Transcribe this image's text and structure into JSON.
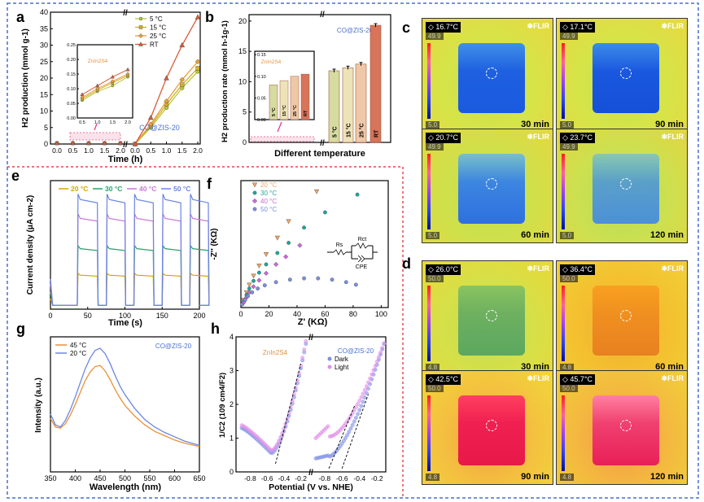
{
  "panel_labels": {
    "a": "a",
    "b": "b",
    "c": "c",
    "d": "d",
    "e": "e",
    "f": "f",
    "g": "g",
    "h": "h"
  },
  "chart_data": [
    {
      "id": "a",
      "type": "line",
      "xlabel": "Time (h)",
      "ylabel": "H2 production (mmol g-1)",
      "ylim": [
        0,
        40
      ],
      "x_ticks_left": [
        "0.0",
        "0.5",
        "1.0",
        "1.5",
        "2.0"
      ],
      "x_ticks_right": [
        "0.0",
        "0.5",
        "1.0",
        "1.5",
        "2.0"
      ],
      "y_ticks": [
        "0",
        "5",
        "10",
        "15",
        "20",
        "25",
        "30",
        "35",
        "40"
      ],
      "legend": [
        "5 °C",
        "15 °C",
        "25 °C",
        "RT"
      ],
      "series_colors": [
        "#b6c83a",
        "#d5b024",
        "#e89e3a",
        "#d65a3a"
      ],
      "main_label": "CO@ZIS-20",
      "main_x": [
        0,
        0.5,
        1.0,
        1.5,
        2.0
      ],
      "main_series": [
        {
          "name": "5 °C",
          "values": [
            0,
            5,
            11,
            17,
            22
          ]
        },
        {
          "name": "15 °C",
          "values": [
            0,
            5.5,
            12,
            18,
            23
          ]
        },
        {
          "name": "25 °C",
          "values": [
            0,
            6,
            13,
            19.5,
            25
          ]
        },
        {
          "name": "RT",
          "values": [
            0,
            8,
            20,
            30,
            38.5
          ]
        }
      ],
      "inset_label": "ZnIn2S4",
      "inset_x": [
        0.5,
        1.0,
        1.5,
        2.0
      ],
      "inset_x_ticks": [
        "0.5",
        "1.0",
        "1.5",
        "2.0"
      ],
      "inset_y_ticks": [
        "0.00",
        "0.05",
        "0.10",
        "0.15",
        "0.20",
        "0.25"
      ],
      "inset_series": [
        {
          "name": "5 °C",
          "values": [
            0.06,
            0.09,
            0.11,
            0.14
          ]
        },
        {
          "name": "15 °C",
          "values": [
            0.065,
            0.095,
            0.12,
            0.145
          ]
        },
        {
          "name": "25 °C",
          "values": [
            0.07,
            0.1,
            0.125,
            0.15
          ]
        },
        {
          "name": "RT",
          "values": [
            0.08,
            0.11,
            0.14,
            0.165
          ]
        }
      ]
    },
    {
      "id": "b",
      "type": "bar",
      "xlabel": "Different temperature",
      "ylabel": "H2 production rate (mmol h-1g-1)",
      "ylim": [
        0,
        20
      ],
      "y_ticks": [
        "0",
        "5",
        "10",
        "15",
        "20"
      ],
      "categories": [
        "5 °C",
        "15 °C",
        "25 °C",
        "RT"
      ],
      "main_label": "CO@ZIS-20",
      "main_values": [
        11.8,
        12.3,
        12.9,
        19.3
      ],
      "inset_label": "ZnIn2S4",
      "inset_values": [
        0.08,
        0.09,
        0.1,
        0.105
      ],
      "inset_y_ticks": [
        "0.00",
        "0.05",
        "0.10",
        "0.15"
      ],
      "bar_colors": [
        "#d6dba0",
        "#ede3b8",
        "#efc8a8",
        "#d7745a"
      ]
    },
    {
      "id": "e",
      "type": "line",
      "xlabel": "Time (s)",
      "ylabel": "Current density (μA cm-2)",
      "ylim": [
        0,
        1.7
      ],
      "x_ticks": [
        "0",
        "50",
        "100",
        "150",
        "200"
      ],
      "legend": [
        "20 °C",
        "30 °C",
        "40 °C",
        "50 °C"
      ],
      "series_colors": [
        "#d9a300",
        "#2e9d6a",
        "#c977d8",
        "#6a86e0"
      ],
      "on_levels": [
        0.45,
        0.8,
        1.2,
        1.45
      ]
    },
    {
      "id": "f",
      "type": "scatter",
      "xlabel": "Z' (KΩ)",
      "ylabel": "-Z'' (KΩ)",
      "xlim": [
        0,
        105
      ],
      "ylim": [
        0,
        200
      ],
      "x_ticks": [
        "0",
        "20",
        "40",
        "60",
        "80",
        "100"
      ],
      "legend": [
        "20 °C",
        "30 °C",
        "40 °C",
        "50 °C"
      ],
      "series_colors": [
        "#f0a463",
        "#1aa89a",
        "#c86ad7",
        "#7a8fe2"
      ],
      "series": [
        {
          "name": "20 °C",
          "x": [
            2,
            4,
            6,
            9,
            13,
            18,
            26,
            34,
            54
          ],
          "y": [
            12,
            24,
            36,
            50,
            66,
            84,
            110,
            136,
            183
          ]
        },
        {
          "name": "30 °C",
          "x": [
            2,
            4,
            6,
            9,
            13,
            18,
            26,
            34,
            45,
            60,
            83
          ],
          "y": [
            10,
            20,
            30,
            42,
            55,
            68,
            86,
            102,
            126,
            150,
            178
          ]
        },
        {
          "name": "40 °C",
          "x": [
            2,
            4,
            6,
            9,
            13,
            18,
            25,
            32,
            42
          ],
          "y": [
            8,
            16,
            24,
            33,
            43,
            54,
            68,
            80,
            98
          ]
        },
        {
          "name": "50 °C",
          "x": [
            1,
            3,
            5,
            8,
            12,
            17,
            25,
            35,
            45,
            55,
            65,
            75,
            82
          ],
          "y": [
            5,
            12,
            18,
            24,
            30,
            35,
            40,
            44,
            46,
            46,
            44,
            40,
            36
          ]
        }
      ],
      "circuit_labels": {
        "rs": "Rs",
        "rct": "Rct",
        "cpe": "CPE"
      }
    },
    {
      "id": "g",
      "type": "line",
      "xlabel": "Wavelength (nm)",
      "ylabel": "Intensity (a.u.)",
      "x_ticks": [
        "350",
        "400",
        "450",
        "500",
        "550",
        "600",
        "650"
      ],
      "legend": [
        "45 °C",
        "20 °C"
      ],
      "series_colors": [
        "#e8913a",
        "#6c86e0"
      ],
      "label": "CO@ZIS-20",
      "x": [
        350,
        360,
        370,
        380,
        390,
        400,
        410,
        420,
        430,
        440,
        450,
        460,
        470,
        480,
        490,
        500,
        520,
        540,
        560,
        580,
        600,
        620,
        650
      ],
      "series": [
        {
          "name": "45 °C",
          "values": [
            0.42,
            0.34,
            0.33,
            0.37,
            0.45,
            0.55,
            0.66,
            0.77,
            0.85,
            0.9,
            0.91,
            0.86,
            0.78,
            0.69,
            0.61,
            0.54,
            0.44,
            0.36,
            0.3,
            0.26,
            0.22,
            0.19,
            0.16
          ]
        },
        {
          "name": "20 °C",
          "values": [
            0.46,
            0.36,
            0.34,
            0.4,
            0.5,
            0.62,
            0.75,
            0.88,
            0.98,
            1.05,
            1.07,
            1.02,
            0.93,
            0.82,
            0.72,
            0.64,
            0.51,
            0.41,
            0.34,
            0.29,
            0.25,
            0.21,
            0.17
          ]
        }
      ]
    },
    {
      "id": "h",
      "type": "scatter",
      "xlabel": "Potential (V vs. NHE)",
      "ylabel": "1/C2 (109 cm4/F2)",
      "y_ticks": [
        "0",
        "1",
        "2",
        "3",
        "4"
      ],
      "x_ticks_left": [
        "-0.8",
        "-0.6",
        "-0.4",
        "-0.2"
      ],
      "x_ticks_right": [
        "-0.8",
        "-0.6",
        "-0.4",
        "-0.2"
      ],
      "legend": [
        "Dark",
        "Light"
      ],
      "series_colors": [
        "#7d8fe6",
        "#e08ee8"
      ],
      "left_label": "ZnIn2S4",
      "right_label": "CO@ZIS-20"
    }
  ],
  "thermal_c": [
    {
      "temp": "16.7°C",
      "max": "49.9",
      "min": "5.0",
      "time": "30 min",
      "brand": "FLIR"
    },
    {
      "temp": "17.1°C",
      "max": "49.9",
      "min": "5.0",
      "time": "90 min",
      "brand": "FLIR"
    },
    {
      "temp": "20.7°C",
      "max": "49.9",
      "min": "5.0",
      "time": "60 min",
      "brand": "FLIR"
    },
    {
      "temp": "23.7°C",
      "max": "49.9",
      "min": "5.0",
      "time": "120 min",
      "brand": "FLIR"
    }
  ],
  "thermal_d": [
    {
      "temp": "26.0°C",
      "max": "50.0",
      "min": "4.8",
      "time": "30 min",
      "brand": "FLIR"
    },
    {
      "temp": "36.4°C",
      "max": "50.0",
      "min": "4.8",
      "time": "60 min",
      "brand": "FLIR"
    },
    {
      "temp": "42.5°C",
      "max": "50.0",
      "min": "4.8",
      "time": "90 min",
      "brand": "FLIR"
    },
    {
      "temp": "45.7°C",
      "max": "50.0",
      "min": "4.8",
      "time": "120 min",
      "brand": "FLIR"
    }
  ],
  "colors": {
    "outer_border": "#4a6fd0",
    "inner_border": "#e02020"
  }
}
